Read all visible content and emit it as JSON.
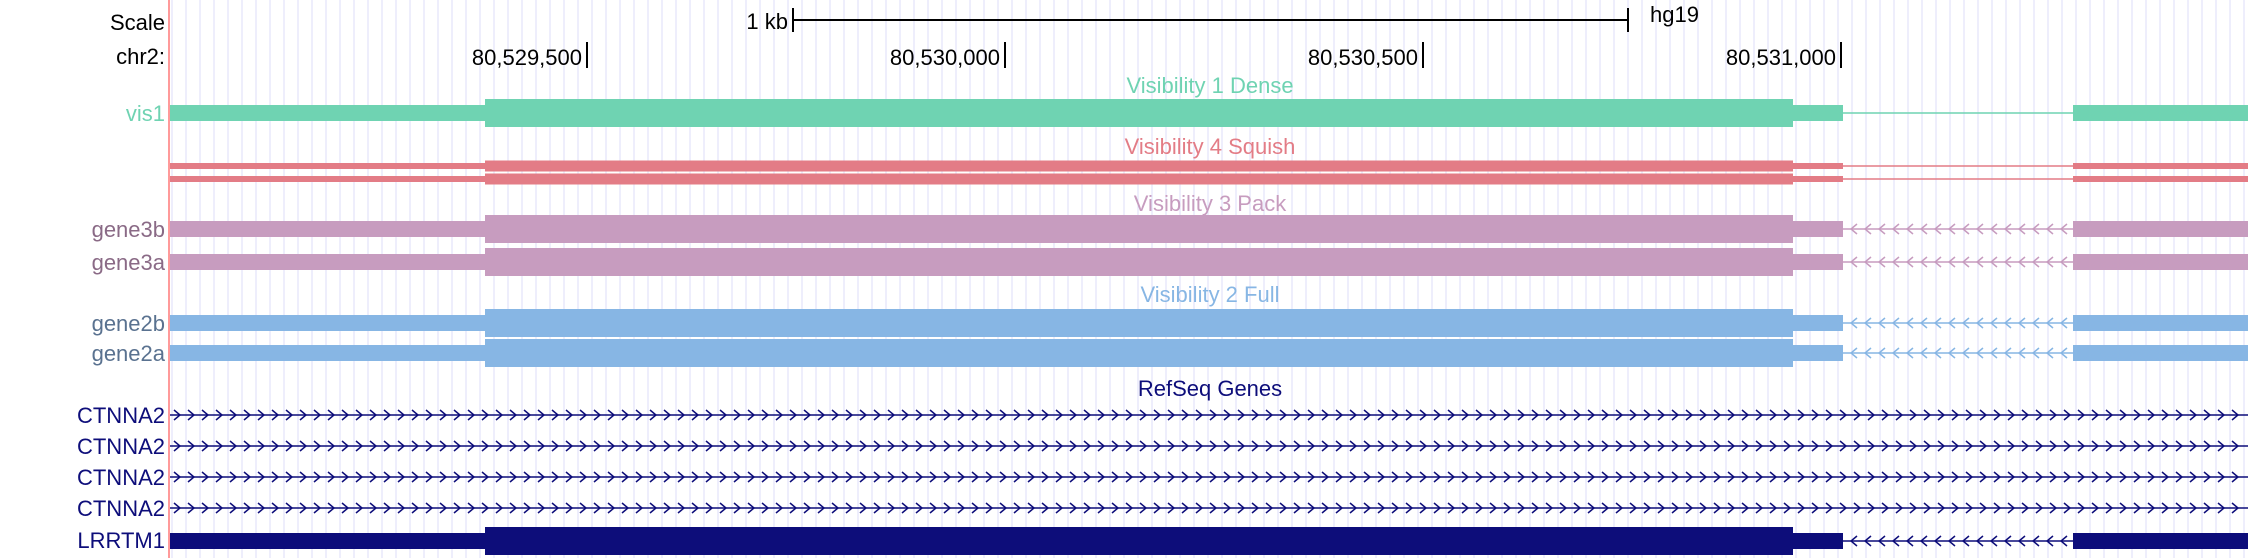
{
  "ruler": {
    "scale_label": "Scale",
    "chrom_label": "chr2:",
    "scalebar_label": "1 kb",
    "assembly": "hg19",
    "positions": [
      "80,529,500",
      "80,530,000",
      "80,530,500",
      "80,531,000"
    ]
  },
  "tracks": {
    "vis1": {
      "title": "Visibility 1 Dense",
      "label": "vis1",
      "color": "#6fd3b2"
    },
    "vis4": {
      "title": "Visibility 4 Squish",
      "color": "#e37c86"
    },
    "vis3": {
      "title": "Visibility 3 Pack",
      "labels": [
        "gene3b",
        "gene3a"
      ],
      "color": "#c79cbf"
    },
    "vis2": {
      "title": "Visibility 2 Full",
      "labels": [
        "gene2b",
        "gene2a"
      ],
      "color": "#87b6e4"
    },
    "refseq": {
      "title": "RefSeq Genes",
      "labels": [
        "CTNNA2",
        "CTNNA2",
        "CTNNA2",
        "CTNNA2",
        "LRRTM1"
      ],
      "color": "#0d0d7a"
    }
  },
  "colors": {
    "guide": "#dcdcf8",
    "ruler": "#000000",
    "left_border": "#ff9a9a"
  }
}
